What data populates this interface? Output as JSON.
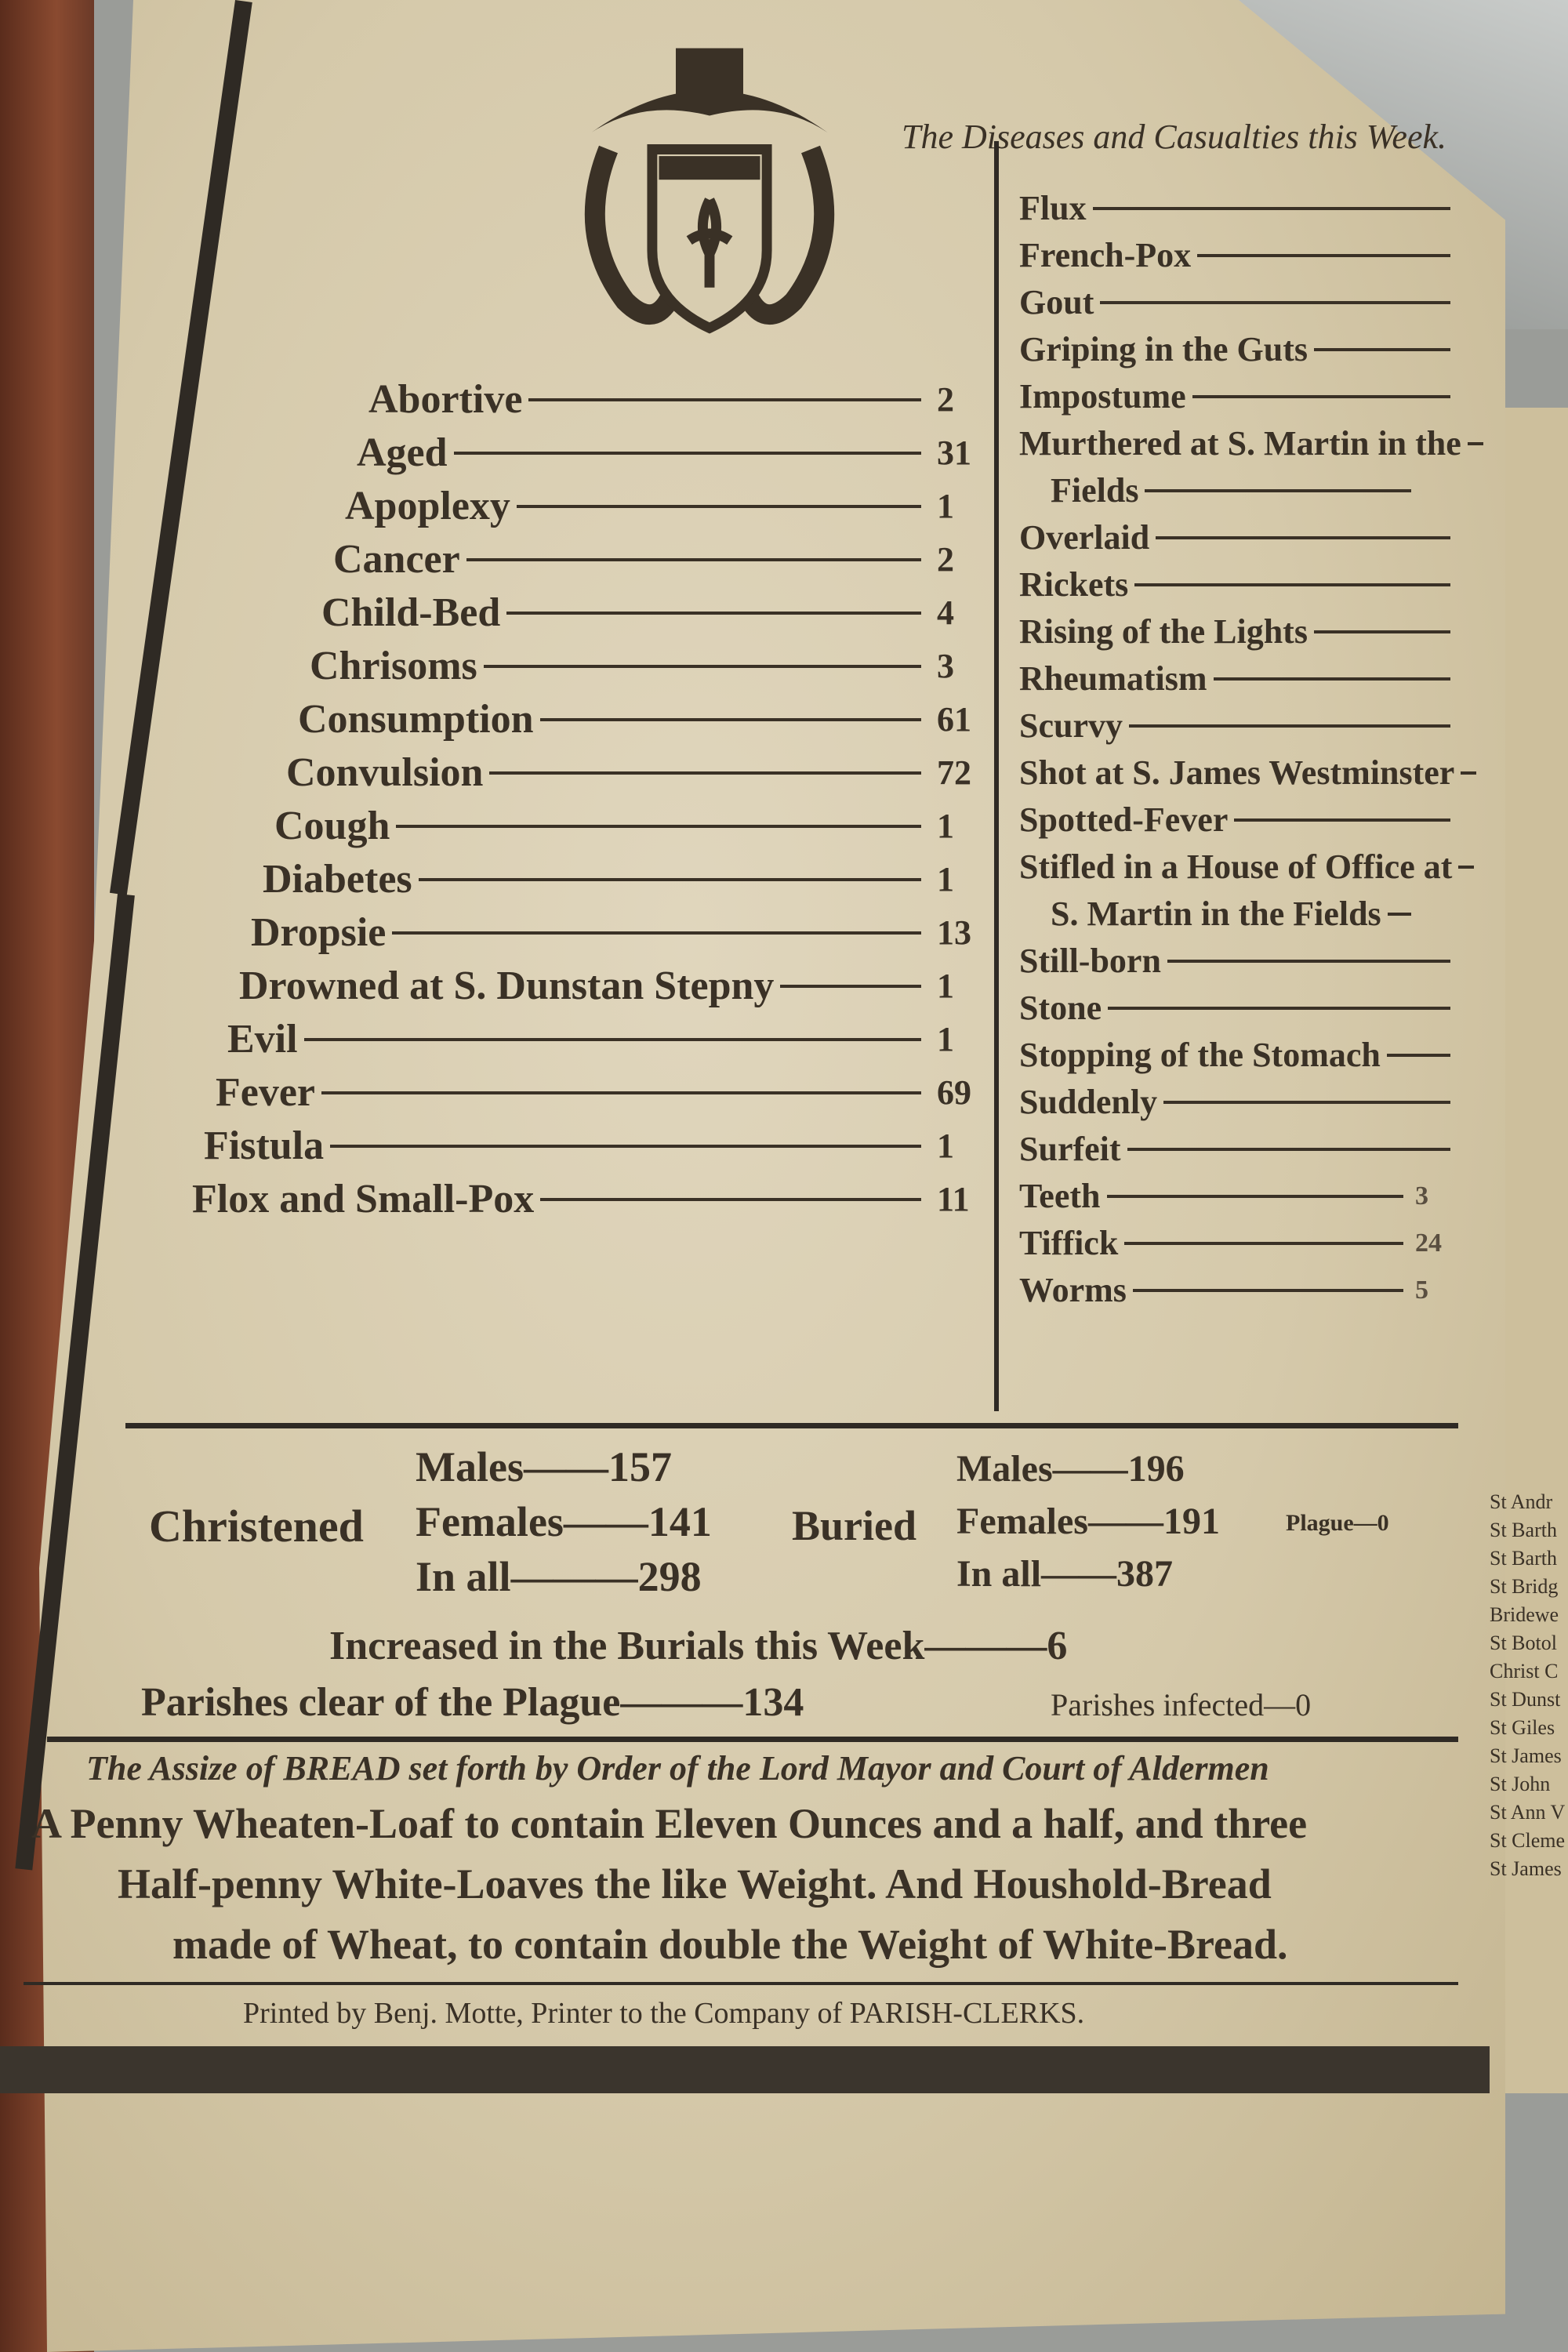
{
  "header": {
    "title": "The Diseases and Casualties this Week."
  },
  "left_column": [
    {
      "label": "Abortive",
      "count": "2"
    },
    {
      "label": "Aged",
      "count": "31"
    },
    {
      "label": "Apoplexy",
      "count": "1"
    },
    {
      "label": "Cancer",
      "count": "2"
    },
    {
      "label": "Child-Bed",
      "count": "4"
    },
    {
      "label": "Chrisoms",
      "count": "3"
    },
    {
      "label": "Consumption",
      "count": "61"
    },
    {
      "label": "Convulsion",
      "count": "72"
    },
    {
      "label": "Cough",
      "count": "1"
    },
    {
      "label": "Diabetes",
      "count": "1"
    },
    {
      "label": "Dropsie",
      "count": "13"
    },
    {
      "label": "Drowned at S. Dunstan Stepny",
      "count": "1"
    },
    {
      "label": "Evil",
      "count": "1"
    },
    {
      "label": "Fever",
      "count": "69"
    },
    {
      "label": "Fistula",
      "count": "1"
    },
    {
      "label": "Flox and Small-Pox",
      "count": "11"
    }
  ],
  "right_column": [
    {
      "label": "Flux"
    },
    {
      "label": "French-Pox"
    },
    {
      "label": "Gout"
    },
    {
      "label": "Griping in the Guts"
    },
    {
      "label": "Impostume"
    },
    {
      "label": "Murthered at S. Martin in the"
    },
    {
      "label": "Fields",
      "indent": true
    },
    {
      "label": "Overlaid"
    },
    {
      "label": "Rickets"
    },
    {
      "label": "Rising of the Lights"
    },
    {
      "label": "Rheumatism"
    },
    {
      "label": "Scurvy"
    },
    {
      "label": "Shot at S. James Westminster"
    },
    {
      "label": "Spotted-Fever"
    },
    {
      "label": "Stifled in a House of Office at"
    },
    {
      "label": "S. Martin in the Fields",
      "indent": true
    },
    {
      "label": "Still-born"
    },
    {
      "label": "Stone"
    },
    {
      "label": "Stopping of the Stomach"
    },
    {
      "label": "Suddenly"
    },
    {
      "label": "Surfeit"
    },
    {
      "label": "Teeth",
      "count": "3"
    },
    {
      "label": "Tiffick",
      "count": "24"
    },
    {
      "label": "Worms",
      "count": "5"
    }
  ],
  "christened": {
    "label": "Christened",
    "males_label": "Males",
    "males": "157",
    "females_label": "Females",
    "females": "141",
    "total_label": "In all",
    "total": "298"
  },
  "buried": {
    "label": "Buried",
    "males_label": "Males",
    "males": "196",
    "females_label": "Females",
    "females": "191",
    "total_label": "In all",
    "total": "387",
    "plague_label": "Plague",
    "plague": "0"
  },
  "summary": {
    "increased_label": "Increased in the Burials this Week",
    "increased": "6",
    "clear_label": "Parishes clear of the Plague",
    "clear": "134",
    "infected_label": "Parishes infected",
    "infected": "0"
  },
  "assize": {
    "heading": "The Assize of BREAD set forth by Order of the Lord Mayor and Court of Aldermen",
    "line1": "A Penny Wheaten-Loaf to contain Eleven Ounces and a half, and three",
    "line2": "Half-penny White-Loaves the like Weight. And Houshold-Bread",
    "line3": "made of Wheat, to contain double the Weight of White-Bread."
  },
  "imprint": "Printed by Benj. Motte, Printer to the Company of PARISH-CLERKS.",
  "crest_initial": "A",
  "right_page_parishes": [
    "St Andr",
    "St Barth",
    "St Barth",
    "St Bridg",
    "Bridewe",
    "St Botol",
    "Christ C",
    "St Dunst",
    "St Giles",
    "St James",
    "St John",
    "St Ann V",
    "St Cleme",
    "St James"
  ],
  "colors": {
    "ink": "#3a3126",
    "paper": "#d8cdb0",
    "cover": "#7a3e28"
  }
}
